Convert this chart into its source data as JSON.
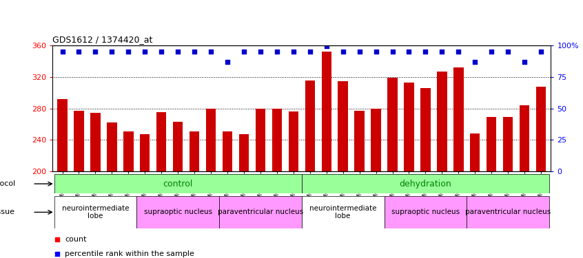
{
  "title": "GDS1612 / 1374420_at",
  "samples": [
    "GSM69787",
    "GSM69788",
    "GSM69789",
    "GSM69790",
    "GSM69791",
    "GSM69461",
    "GSM69462",
    "GSM69463",
    "GSM69464",
    "GSM69465",
    "GSM69475",
    "GSM69476",
    "GSM69477",
    "GSM69478",
    "GSM69479",
    "GSM69782",
    "GSM69783",
    "GSM69784",
    "GSM69785",
    "GSM69786",
    "GSM69268",
    "GSM69457",
    "GSM69458",
    "GSM69459",
    "GSM69460",
    "GSM69470",
    "GSM69471",
    "GSM69472",
    "GSM69473",
    "GSM69474"
  ],
  "bar_values": [
    292,
    277,
    274,
    262,
    251,
    247,
    275,
    263,
    251,
    280,
    251,
    247,
    280,
    280,
    276,
    315,
    352,
    314,
    277,
    280,
    319,
    313,
    306,
    327,
    332,
    248,
    269,
    269,
    284,
    307
  ],
  "percentile_values": [
    95,
    95,
    95,
    95,
    95,
    95,
    95,
    95,
    95,
    95,
    87,
    95,
    95,
    95,
    95,
    95,
    99,
    95,
    95,
    95,
    95,
    95,
    95,
    95,
    95,
    87,
    95,
    95,
    87,
    95
  ],
  "bar_color": "#cc0000",
  "percentile_color": "#0000cc",
  "ylim_left": [
    200,
    360
  ],
  "ylim_right": [
    0,
    100
  ],
  "yticks_left": [
    200,
    240,
    280,
    320,
    360
  ],
  "yticks_right": [
    0,
    25,
    50,
    75,
    100
  ],
  "grid_values": [
    240,
    280,
    320
  ],
  "protocol_defs": [
    {
      "label": "control",
      "start": 0,
      "end": 14,
      "color": "#99ff99"
    },
    {
      "label": "dehydration",
      "start": 15,
      "end": 29,
      "color": "#99ff99"
    }
  ],
  "tissue_defs": [
    {
      "label": "neurointermediate\nlobe",
      "start": 0,
      "end": 4,
      "color": "#ffffff"
    },
    {
      "label": "supraoptic nucleus",
      "start": 5,
      "end": 9,
      "color": "#ff99ff"
    },
    {
      "label": "paraventricular nucleus",
      "start": 10,
      "end": 14,
      "color": "#ff99ff"
    },
    {
      "label": "neurointermediate\nlobe",
      "start": 15,
      "end": 19,
      "color": "#ffffff"
    },
    {
      "label": "supraoptic nucleus",
      "start": 20,
      "end": 24,
      "color": "#ff99ff"
    },
    {
      "label": "paraventricular nucleus",
      "start": 25,
      "end": 29,
      "color": "#ff99ff"
    }
  ]
}
